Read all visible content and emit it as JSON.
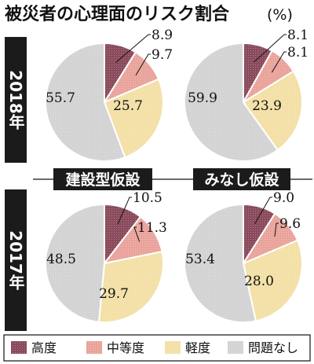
{
  "title": "被災者の心理面のリスク割合",
  "title_unit": "(%)",
  "year_labels": [
    "2018年",
    "2017年"
  ],
  "column_labels": [
    "建設型仮設",
    "みなし仮設"
  ],
  "colors": {
    "high": "#8a4a5c",
    "mid": "#e9a39b",
    "light": "#f3e0a6",
    "none": "#d3d3d3",
    "dark": "#1b1b1b"
  },
  "legend": [
    {
      "label": "高度",
      "color_key": "high"
    },
    {
      "label": "中等度",
      "color_key": "mid"
    },
    {
      "label": "軽度",
      "color_key": "light"
    },
    {
      "label": "問題なし",
      "color_key": "none"
    }
  ],
  "chart_data": [
    {
      "type": "pie",
      "year": "2018年",
      "group": "建設型仮設",
      "categories": [
        "高度",
        "中等度",
        "軽度",
        "問題なし"
      ],
      "values": [
        8.9,
        9.7,
        25.7,
        55.7
      ],
      "labels": [
        "8.9",
        "9.7",
        "25.7",
        "55.7"
      ]
    },
    {
      "type": "pie",
      "year": "2018年",
      "group": "みなし仮設",
      "categories": [
        "高度",
        "中等度",
        "軽度",
        "問題なし"
      ],
      "values": [
        8.1,
        8.1,
        23.9,
        59.9
      ],
      "labels": [
        "8.1",
        "8.1",
        "23.9",
        "59.9"
      ]
    },
    {
      "type": "pie",
      "year": "2017年",
      "group": "建設型仮設",
      "categories": [
        "高度",
        "中等度",
        "軽度",
        "問題なし"
      ],
      "values": [
        10.5,
        11.3,
        29.7,
        48.5
      ],
      "labels": [
        "10.5",
        "11.3",
        "29.7",
        "48.5"
      ]
    },
    {
      "type": "pie",
      "year": "2017年",
      "group": "みなし仮設",
      "categories": [
        "高度",
        "中等度",
        "軽度",
        "問題なし"
      ],
      "values": [
        9.0,
        9.6,
        28.0,
        53.4
      ],
      "labels": [
        "9.0",
        "9.6",
        "28.0",
        "53.4"
      ]
    }
  ]
}
